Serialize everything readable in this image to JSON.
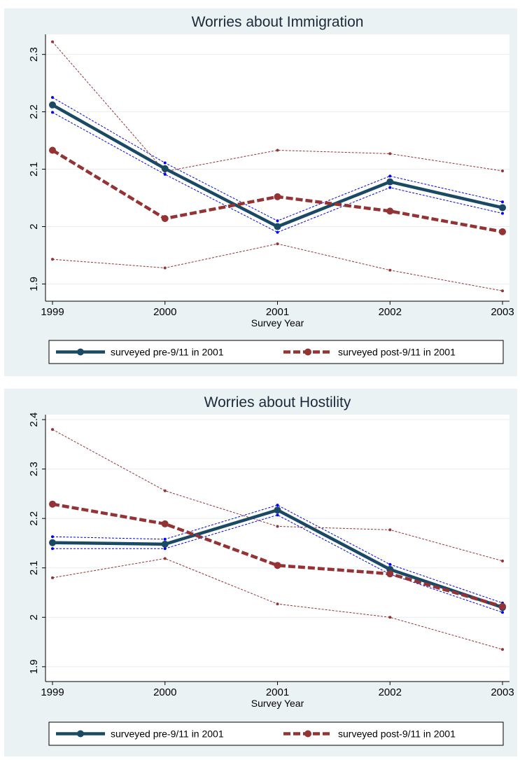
{
  "chart_data": [
    {
      "type": "line",
      "title": "Worries about Immigration",
      "xlabel": "Survey Year",
      "ylabel": "",
      "x": [
        1999,
        2000,
        2001,
        2002,
        2003
      ],
      "x_tick_labels": [
        "1999",
        "2000",
        "2001",
        "2002",
        "2003"
      ],
      "y_ticks": [
        1.9,
        2,
        2.1,
        2.2,
        2.3
      ],
      "y_tick_labels": [
        "1.9",
        "2",
        "2.1",
        "2.2",
        "2.3"
      ],
      "ylim": [
        1.87,
        2.335
      ],
      "grid": true,
      "legend_position": "bottom",
      "series": [
        {
          "name": "surveyed pre-9/11 in 2001",
          "color": "#1a4a63",
          "role": "estimate",
          "values": [
            2.212,
            2.101,
            2.0,
            2.078,
            2.033
          ]
        },
        {
          "name": "",
          "color": "#0000ff",
          "role": "upper-ci",
          "values": [
            2.225,
            2.111,
            2.01,
            2.088,
            2.043
          ]
        },
        {
          "name": "",
          "color": "#0000ff",
          "role": "lower-ci",
          "values": [
            2.199,
            2.091,
            1.99,
            2.068,
            2.023
          ]
        },
        {
          "name": "surveyed post-9/11 in 2001",
          "color": "#943234",
          "role": "estimate",
          "values": [
            2.133,
            2.014,
            2.052,
            2.027,
            1.991
          ]
        },
        {
          "name": "",
          "color": "#943234",
          "role": "upper-ci",
          "values": [
            2.322,
            2.096,
            2.133,
            2.127,
            2.097
          ]
        },
        {
          "name": "",
          "color": "#943234",
          "role": "lower-ci",
          "values": [
            1.943,
            1.928,
            1.97,
            1.924,
            1.888
          ]
        }
      ]
    },
    {
      "type": "line",
      "title": "Worries about Hostility",
      "xlabel": "Survey Year",
      "ylabel": "",
      "x": [
        1999,
        2000,
        2001,
        2002,
        2003
      ],
      "x_tick_labels": [
        "1999",
        "2000",
        "2001",
        "2002",
        "2003"
      ],
      "y_ticks": [
        1.9,
        2,
        2.1,
        2.2,
        2.3,
        2.4
      ],
      "y_tick_labels": [
        "1.9",
        "2",
        "2.1",
        "2.2",
        "2.3",
        "2.4"
      ],
      "ylim": [
        1.87,
        2.41
      ],
      "grid": true,
      "legend_position": "bottom",
      "series": [
        {
          "name": "surveyed pre-9/11 in 2001",
          "color": "#1a4a63",
          "role": "estimate",
          "values": [
            2.151,
            2.148,
            2.217,
            2.097,
            2.02
          ]
        },
        {
          "name": "",
          "color": "#0000ff",
          "role": "upper-ci",
          "values": [
            2.163,
            2.158,
            2.227,
            2.107,
            2.029
          ]
        },
        {
          "name": "",
          "color": "#0000ff",
          "role": "lower-ci",
          "values": [
            2.139,
            2.139,
            2.207,
            2.087,
            2.01
          ]
        },
        {
          "name": "surveyed post-9/11 in 2001",
          "color": "#943234",
          "role": "estimate",
          "values": [
            2.229,
            2.189,
            2.105,
            2.088,
            2.022
          ]
        },
        {
          "name": "",
          "color": "#943234",
          "role": "upper-ci",
          "values": [
            2.38,
            2.256,
            2.184,
            2.177,
            2.114
          ]
        },
        {
          "name": "",
          "color": "#943234",
          "role": "lower-ci",
          "values": [
            2.08,
            2.119,
            2.027,
            2.0,
            1.935
          ]
        }
      ]
    }
  ]
}
